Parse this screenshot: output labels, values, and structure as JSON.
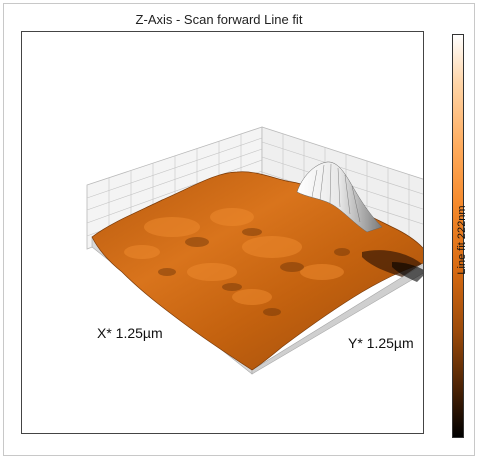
{
  "title": "Z-Axis - Scan forward   Line fit",
  "axes": {
    "x_label": "X* 1.25µm",
    "y_label": "Y* 1.25µm"
  },
  "colorbar": {
    "label": "Line fit 222nm",
    "colors": [
      "#ffffff",
      "#f58a2c",
      "#000000"
    ]
  },
  "colors": {
    "surface_main": "#c4620f",
    "surface_highlight": "#ee8a2e",
    "surface_shadow": "#4a2205",
    "grid": "#b9b9b9"
  }
}
